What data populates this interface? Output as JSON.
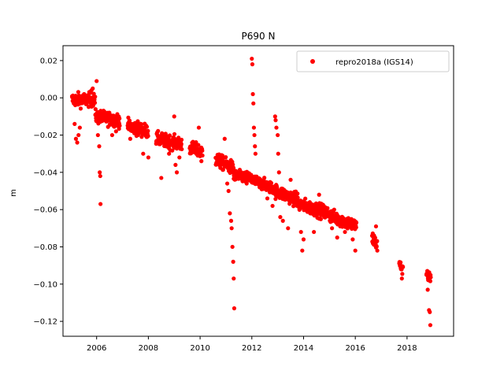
{
  "chart_data": {
    "type": "scatter",
    "title": "P690 N",
    "xlabel": "",
    "ylabel": "m",
    "xlim": [
      2004.7,
      2019.8
    ],
    "ylim": [
      -0.128,
      0.028
    ],
    "x_ticks": [
      2006,
      2008,
      2010,
      2012,
      2014,
      2016,
      2018
    ],
    "y_ticks": [
      0.02,
      0.0,
      -0.02,
      -0.04,
      -0.06,
      -0.08,
      -0.1,
      -0.12
    ],
    "x_tick_labels": [
      "2006",
      "2008",
      "2010",
      "2012",
      "2014",
      "2016",
      "2018"
    ],
    "y_tick_labels": [
      "0.02",
      "0.00",
      "−0.02",
      "−0.04",
      "−0.06",
      "−0.08",
      "−0.10",
      "−0.12"
    ],
    "grid": false,
    "legend": {
      "position": "top-right"
    },
    "series": [
      {
        "name": "repro2018a (IGS14)",
        "color": "#ff0000",
        "marker": "circle",
        "trend_segments": [
          {
            "x_start": 2005.05,
            "x_end": 2005.95,
            "y_start": -0.001,
            "y_end": -0.001,
            "noise": 0.003
          },
          {
            "x_start": 2005.95,
            "x_end": 2006.9,
            "y_start": -0.01,
            "y_end": -0.012,
            "noise": 0.003
          },
          {
            "x_start": 2007.2,
            "x_end": 2008.0,
            "y_start": -0.015,
            "y_end": -0.018,
            "noise": 0.003
          },
          {
            "x_start": 2008.3,
            "x_end": 2009.3,
            "y_start": -0.022,
            "y_end": -0.025,
            "noise": 0.003
          },
          {
            "x_start": 2009.6,
            "x_end": 2010.1,
            "y_start": -0.027,
            "y_end": -0.029,
            "noise": 0.003
          },
          {
            "x_start": 2010.6,
            "x_end": 2011.3,
            "y_start": -0.033,
            "y_end": -0.038,
            "noise": 0.003
          },
          {
            "x_start": 2011.3,
            "x_end": 2012.0,
            "y_start": -0.042,
            "y_end": -0.043,
            "noise": 0.0025
          },
          {
            "x_start": 2012.0,
            "x_end": 2012.9,
            "y_start": -0.044,
            "y_end": -0.049,
            "noise": 0.0025
          },
          {
            "x_start": 2012.9,
            "x_end": 2013.8,
            "y_start": -0.05,
            "y_end": -0.055,
            "noise": 0.003
          },
          {
            "x_start": 2013.8,
            "x_end": 2015.0,
            "y_start": -0.057,
            "y_end": -0.062,
            "noise": 0.003
          },
          {
            "x_start": 2015.0,
            "x_end": 2016.05,
            "y_start": -0.063,
            "y_end": -0.069,
            "noise": 0.003
          },
          {
            "x_start": 2016.65,
            "x_end": 2016.85,
            "y_start": -0.075,
            "y_end": -0.079,
            "noise": 0.003
          },
          {
            "x_start": 2017.7,
            "x_end": 2017.85,
            "y_start": -0.089,
            "y_end": -0.093,
            "noise": 0.002
          },
          {
            "x_start": 2018.75,
            "x_end": 2018.92,
            "y_start": -0.093,
            "y_end": -0.098,
            "noise": 0.003
          }
        ],
        "outliers": [
          [
            2005.15,
            -0.014
          ],
          [
            2005.2,
            -0.022
          ],
          [
            2005.25,
            -0.024
          ],
          [
            2005.3,
            -0.02
          ],
          [
            2005.35,
            -0.016
          ],
          [
            2005.8,
            0.004
          ],
          [
            2005.85,
            0.005
          ],
          [
            2006.0,
            0.009
          ],
          [
            2006.05,
            -0.02
          ],
          [
            2006.1,
            -0.026
          ],
          [
            2006.12,
            -0.04
          ],
          [
            2006.14,
            -0.042
          ],
          [
            2006.15,
            -0.057
          ],
          [
            2006.6,
            -0.02
          ],
          [
            2006.75,
            -0.018
          ],
          [
            2007.3,
            -0.022
          ],
          [
            2007.6,
            -0.02
          ],
          [
            2007.8,
            -0.03
          ],
          [
            2008.0,
            -0.032
          ],
          [
            2008.5,
            -0.043
          ],
          [
            2008.8,
            -0.03
          ],
          [
            2009.0,
            -0.01
          ],
          [
            2009.05,
            -0.036
          ],
          [
            2009.1,
            -0.04
          ],
          [
            2009.2,
            -0.032
          ],
          [
            2009.9,
            -0.03
          ],
          [
            2009.95,
            -0.016
          ],
          [
            2010.05,
            -0.034
          ],
          [
            2010.95,
            -0.022
          ],
          [
            2011.05,
            -0.046
          ],
          [
            2011.1,
            -0.05
          ],
          [
            2011.15,
            -0.062
          ],
          [
            2011.2,
            -0.066
          ],
          [
            2011.22,
            -0.07
          ],
          [
            2011.25,
            -0.08
          ],
          [
            2011.28,
            -0.088
          ],
          [
            2011.3,
            -0.097
          ],
          [
            2011.32,
            -0.113
          ],
          [
            2011.6,
            -0.04
          ],
          [
            2011.8,
            -0.046
          ],
          [
            2012.0,
            0.021
          ],
          [
            2012.02,
            0.018
          ],
          [
            2012.04,
            0.002
          ],
          [
            2012.06,
            -0.003
          ],
          [
            2012.08,
            -0.016
          ],
          [
            2012.1,
            -0.02
          ],
          [
            2012.12,
            -0.026
          ],
          [
            2012.14,
            -0.03
          ],
          [
            2012.3,
            -0.048
          ],
          [
            2012.6,
            -0.054
          ],
          [
            2012.8,
            -0.058
          ],
          [
            2012.9,
            -0.01
          ],
          [
            2012.92,
            -0.012
          ],
          [
            2012.95,
            -0.016
          ],
          [
            2013.0,
            -0.02
          ],
          [
            2013.02,
            -0.03
          ],
          [
            2013.05,
            -0.04
          ],
          [
            2013.1,
            -0.064
          ],
          [
            2013.2,
            -0.066
          ],
          [
            2013.4,
            -0.07
          ],
          [
            2013.5,
            -0.044
          ],
          [
            2013.9,
            -0.072
          ],
          [
            2013.95,
            -0.082
          ],
          [
            2014.0,
            -0.076
          ],
          [
            2014.4,
            -0.072
          ],
          [
            2014.6,
            -0.052
          ],
          [
            2014.8,
            -0.064
          ],
          [
            2015.1,
            -0.07
          ],
          [
            2015.3,
            -0.075
          ],
          [
            2015.6,
            -0.072
          ],
          [
            2015.9,
            -0.076
          ],
          [
            2016.0,
            -0.082
          ],
          [
            2016.8,
            -0.069
          ],
          [
            2016.85,
            -0.082
          ],
          [
            2017.8,
            -0.097
          ],
          [
            2018.8,
            -0.103
          ],
          [
            2018.85,
            -0.114
          ],
          [
            2018.88,
            -0.115
          ],
          [
            2018.9,
            -0.122
          ]
        ]
      }
    ]
  }
}
